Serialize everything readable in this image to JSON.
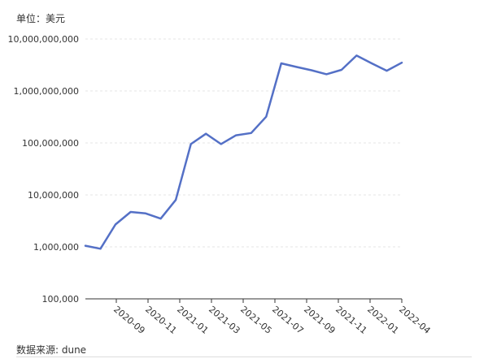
{
  "unit_label": "单位：美元",
  "source_label": "数据来源: dune",
  "colors": {
    "line": "#5470c6",
    "grid": "#e6e6e6",
    "axis": "#333333"
  },
  "chart_data": {
    "type": "line",
    "title": "",
    "xlabel": "",
    "ylabel": "",
    "y_scale": "log",
    "ylim": [
      100000,
      10000000000
    ],
    "y_ticks": [
      100000,
      1000000,
      10000000,
      100000000,
      1000000000,
      10000000000
    ],
    "y_tick_labels": [
      "100,000",
      "1,000,000",
      "10,000,000",
      "100,000,000",
      "1,000,000,000",
      "10,000,000,000"
    ],
    "x_tick_labels": [
      "2020-09",
      "2020-11",
      "2021-01",
      "2021-03",
      "2021-05",
      "2021-07",
      "2021-09",
      "2021-11",
      "2022-01",
      "2022-04"
    ],
    "grid": true,
    "series": [
      {
        "values": [
          1050000,
          920000,
          2700000,
          4700000,
          4400000,
          3500000,
          8000000,
          95000000,
          150000000,
          95000000,
          140000000,
          155000000,
          320000000,
          3400000000,
          2900000000,
          2500000000,
          2100000000,
          2550000000,
          4800000000,
          3400000000,
          2450000000,
          3500000000
        ]
      }
    ]
  }
}
